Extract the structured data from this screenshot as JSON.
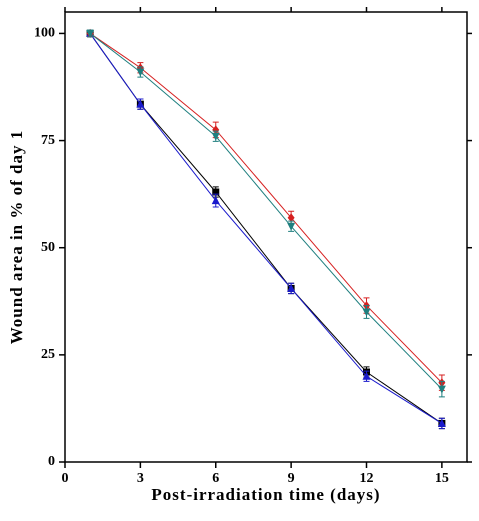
{
  "chart_data": {
    "type": "line",
    "xlabel": "Post-irradiation time (days)",
    "ylabel": "Wound area in % of day 1",
    "x": [
      1,
      3,
      6,
      9,
      12,
      15
    ],
    "xlim": [
      0,
      16
    ],
    "xticks": [
      0,
      3,
      6,
      9,
      12,
      15
    ],
    "ylim": [
      0,
      105
    ],
    "yticks": [
      0,
      25,
      50,
      75,
      100
    ],
    "series": [
      {
        "color": "#000000",
        "marker": "square",
        "values": [
          100,
          83.5,
          63,
          40.5,
          21,
          9
        ],
        "errors": [
          0.8,
          1.2,
          1.2,
          1.2,
          1.2,
          1.2
        ]
      },
      {
        "color": "#1a1acc",
        "marker": "triangle",
        "values": [
          100,
          83.5,
          61,
          40.5,
          20,
          9
        ],
        "errors": [
          0.8,
          1.2,
          1.5,
          1.2,
          1.2,
          1.2
        ]
      },
      {
        "color": "#d62020",
        "marker": "diamond",
        "values": [
          100,
          92,
          77.5,
          57,
          36.5,
          18.5
        ],
        "errors": [
          0.8,
          1.2,
          1.8,
          1.5,
          1.8,
          1.8
        ]
      },
      {
        "color": "#1f7f7f",
        "marker": "triangle-down",
        "values": [
          100,
          91,
          76,
          55,
          35,
          17
        ],
        "errors": [
          0.8,
          1.2,
          1.2,
          1.2,
          1.5,
          1.8
        ]
      }
    ]
  }
}
